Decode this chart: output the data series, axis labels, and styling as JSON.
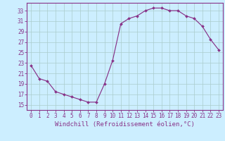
{
  "x": [
    0,
    1,
    2,
    3,
    4,
    5,
    6,
    7,
    8,
    9,
    10,
    11,
    12,
    13,
    14,
    15,
    16,
    17,
    18,
    19,
    20,
    21,
    22,
    23
  ],
  "y": [
    22.5,
    20.0,
    19.5,
    17.5,
    17.0,
    16.5,
    16.0,
    15.5,
    15.5,
    19.0,
    23.5,
    30.5,
    31.5,
    32.0,
    33.0,
    33.5,
    33.5,
    33.0,
    33.0,
    32.0,
    31.5,
    30.0,
    27.5,
    25.5
  ],
  "line_color": "#883388",
  "marker": "D",
  "marker_size": 2.0,
  "bg_color": "#cceeff",
  "grid_color": "#aacccc",
  "xlabel": "Windchill (Refroidissement éolien,°C)",
  "ylabel_ticks": [
    15,
    17,
    19,
    21,
    23,
    25,
    27,
    29,
    31,
    33
  ],
  "xtick_labels": [
    "0",
    "1",
    "2",
    "3",
    "4",
    "5",
    "6",
    "7",
    "8",
    "9",
    "10",
    "11",
    "12",
    "13",
    "14",
    "15",
    "16",
    "17",
    "18",
    "19",
    "20",
    "21",
    "22",
    "23"
  ],
  "ylim": [
    14.0,
    34.5
  ],
  "xlim": [
    -0.5,
    23.5
  ],
  "tick_fontsize": 5.5,
  "xlabel_fontsize": 6.5
}
